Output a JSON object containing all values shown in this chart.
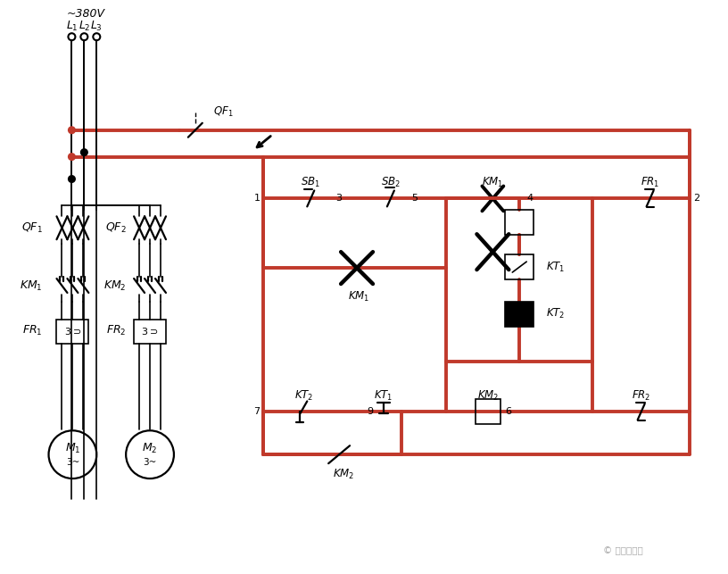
{
  "bg_color": "#ffffff",
  "red": "#c0392b",
  "black": "#000000",
  "gray": "#aaaaaa",
  "fig_width": 8.16,
  "fig_height": 6.43,
  "lw_red": 2.8,
  "lw_blk": 1.6,
  "lw_thin": 1.2
}
